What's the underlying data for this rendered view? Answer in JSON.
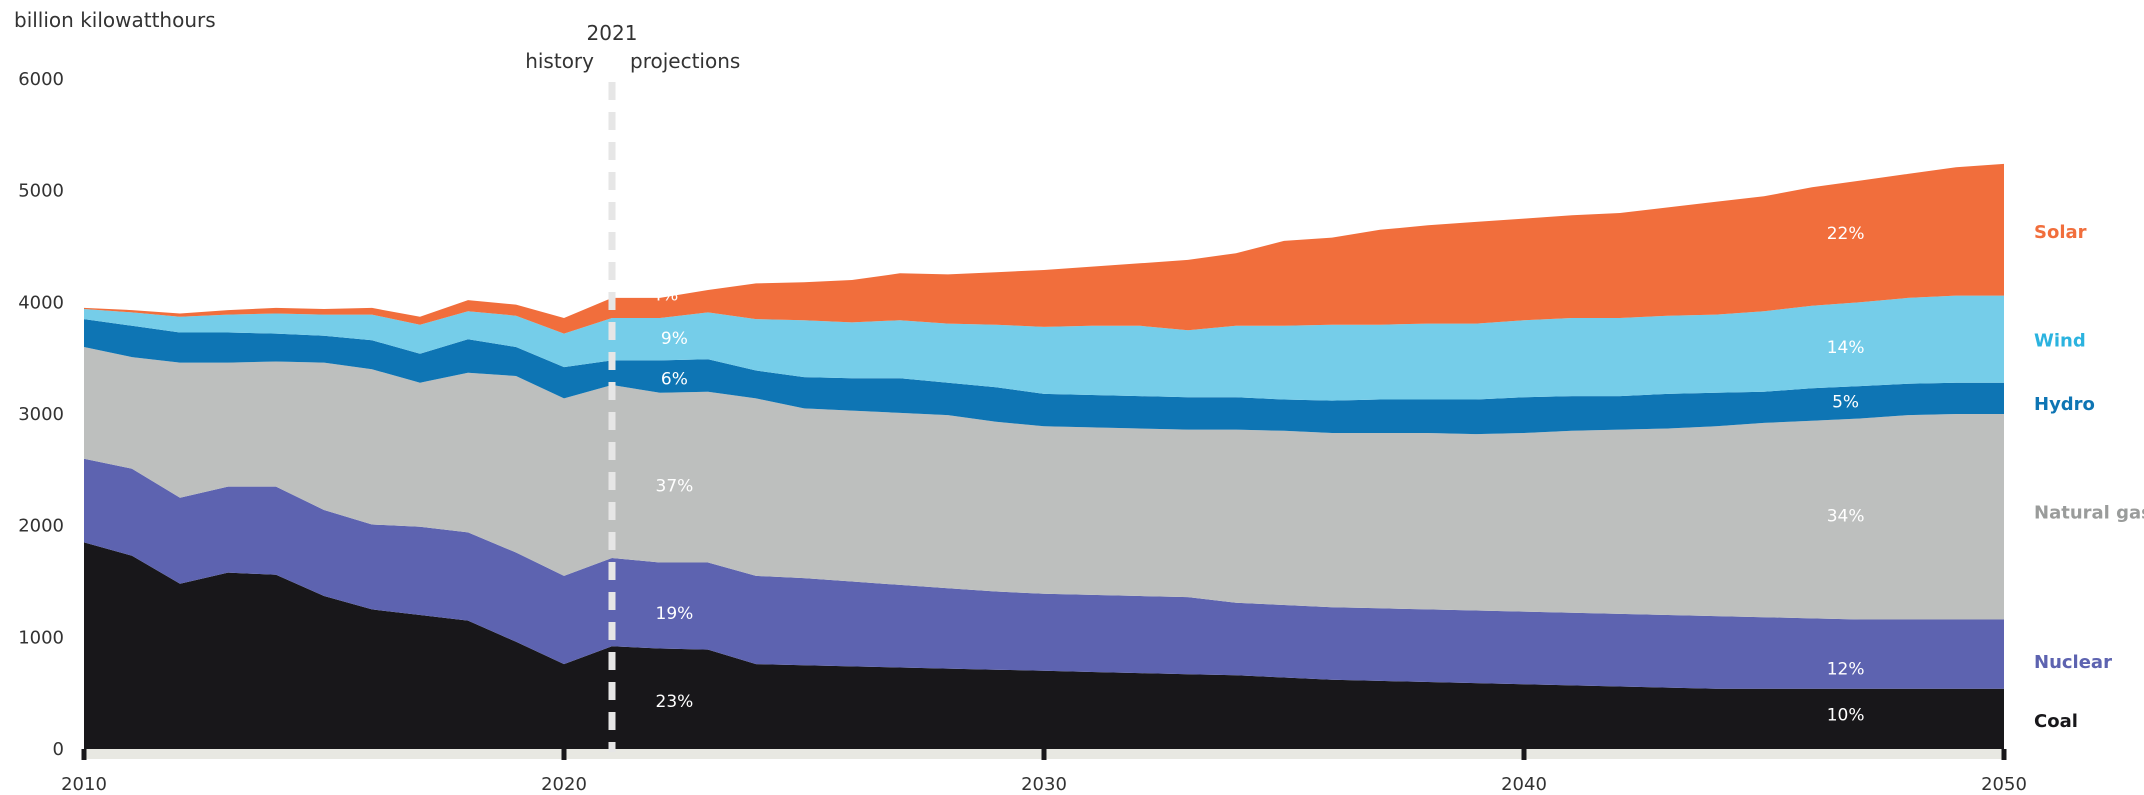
{
  "chart_data": {
    "type": "area",
    "stacked": true,
    "ylabel": "billion kilowatthours",
    "ylim": [
      0,
      6000
    ],
    "xlim": [
      2010,
      2050
    ],
    "yticks": [
      0,
      1000,
      2000,
      3000,
      4000,
      5000,
      6000
    ],
    "xticks": [
      2010,
      2020,
      2030,
      2040,
      2050
    ],
    "divider": {
      "year": 2021,
      "label": "2021",
      "left_label": "history",
      "right_label": "projections"
    },
    "x": [
      2010,
      2011,
      2012,
      2013,
      2014,
      2015,
      2016,
      2017,
      2018,
      2019,
      2020,
      2021,
      2022,
      2023,
      2024,
      2025,
      2026,
      2027,
      2028,
      2029,
      2030,
      2031,
      2032,
      2033,
      2034,
      2035,
      2036,
      2037,
      2038,
      2039,
      2040,
      2041,
      2042,
      2043,
      2044,
      2045,
      2046,
      2047,
      2048,
      2049,
      2050
    ],
    "series": [
      {
        "name": "Coal",
        "color": "#18171a",
        "values": [
          1850,
          1730,
          1480,
          1580,
          1560,
          1370,
          1250,
          1200,
          1150,
          960,
          760,
          920,
          900,
          890,
          760,
          750,
          740,
          730,
          720,
          710,
          700,
          690,
          680,
          670,
          660,
          640,
          620,
          610,
          600,
          590,
          580,
          570,
          560,
          550,
          540,
          540,
          540,
          540,
          540,
          540,
          540
        ]
      },
      {
        "name": "Nuclear",
        "color": "#5d63b0",
        "values": [
          750,
          780,
          770,
          770,
          790,
          770,
          760,
          790,
          790,
          800,
          790,
          790,
          770,
          780,
          790,
          780,
          760,
          740,
          720,
          700,
          690,
          690,
          690,
          690,
          650,
          650,
          650,
          650,
          650,
          650,
          650,
          650,
          650,
          650,
          650,
          640,
          630,
          620,
          620,
          620,
          620
        ]
      },
      {
        "name": "Natural gas",
        "color": "#bdbfbe",
        "values": [
          1000,
          1000,
          1210,
          1110,
          1120,
          1320,
          1390,
          1290,
          1430,
          1580,
          1590,
          1550,
          1520,
          1530,
          1590,
          1520,
          1530,
          1540,
          1550,
          1520,
          1500,
          1500,
          1500,
          1500,
          1550,
          1560,
          1560,
          1570,
          1580,
          1580,
          1600,
          1630,
          1650,
          1670,
          1700,
          1740,
          1770,
          1800,
          1830,
          1840,
          1840
        ]
      },
      {
        "name": "Hydro",
        "color": "#0e75b4",
        "values": [
          250,
          280,
          270,
          270,
          250,
          240,
          260,
          260,
          300,
          260,
          280,
          220,
          290,
          290,
          250,
          280,
          290,
          310,
          290,
          310,
          290,
          290,
          290,
          290,
          290,
          280,
          290,
          300,
          300,
          310,
          320,
          310,
          300,
          310,
          300,
          280,
          290,
          290,
          280,
          280,
          280
        ]
      },
      {
        "name": "Wind",
        "color": "#75cde9",
        "values": [
          90,
          120,
          140,
          160,
          180,
          190,
          230,
          260,
          250,
          280,
          300,
          380,
          380,
          420,
          460,
          510,
          500,
          520,
          530,
          560,
          600,
          620,
          630,
          600,
          640,
          660,
          680,
          670,
          680,
          680,
          690,
          700,
          700,
          700,
          700,
          720,
          740,
          750,
          770,
          780,
          780
        ]
      },
      {
        "name": "Solar",
        "color": "#f16e3c",
        "values": [
          10,
          20,
          30,
          40,
          50,
          50,
          60,
          70,
          100,
          100,
          140,
          180,
          180,
          200,
          320,
          340,
          380,
          420,
          440,
          470,
          510,
          530,
          560,
          630,
          650,
          760,
          780,
          850,
          880,
          910,
          910,
          920,
          940,
          970,
          1010,
          1030,
          1060,
          1090,
          1110,
          1150,
          1180
        ]
      }
    ],
    "annotations": [
      {
        "series": "Solar",
        "year": 2022.1,
        "value": 4070,
        "label": "4%"
      },
      {
        "series": "Wind",
        "year": 2022.3,
        "value": 3680,
        "label": "9%"
      },
      {
        "series": "Hydro",
        "year": 2022.3,
        "value": 3320,
        "label": "6%"
      },
      {
        "series": "Natural gas",
        "year": 2022.3,
        "value": 2360,
        "label": "37%"
      },
      {
        "series": "Nuclear",
        "year": 2022.3,
        "value": 1220,
        "label": "19%"
      },
      {
        "series": "Coal",
        "year": 2022.3,
        "value": 430,
        "label": "23%"
      },
      {
        "series": "Solar",
        "year": 2046.7,
        "value": 4620,
        "label": "22%"
      },
      {
        "series": "Wind",
        "year": 2046.7,
        "value": 3600,
        "label": "14%"
      },
      {
        "series": "Hydro",
        "year": 2046.7,
        "value": 3110,
        "label": "5%"
      },
      {
        "series": "Natural gas",
        "year": 2046.7,
        "value": 2090,
        "label": "34%"
      },
      {
        "series": "Nuclear",
        "year": 2046.7,
        "value": 720,
        "label": "12%"
      },
      {
        "series": "Coal",
        "year": 2046.7,
        "value": 310,
        "label": "10%"
      }
    ],
    "legend": [
      {
        "name": "Solar",
        "color": "#f16e3c",
        "value": 4630
      },
      {
        "name": "Wind",
        "color": "#2bb3df",
        "value": 3660
      },
      {
        "name": "Hydro",
        "color": "#0e75b4",
        "value": 3090
      },
      {
        "name": "Natural gas",
        "color": "#9a9c9b",
        "value": 2120
      },
      {
        "name": "Nuclear",
        "color": "#5d63b0",
        "value": 780
      },
      {
        "name": "Coal",
        "color": "#18171a",
        "value": 250
      }
    ]
  }
}
